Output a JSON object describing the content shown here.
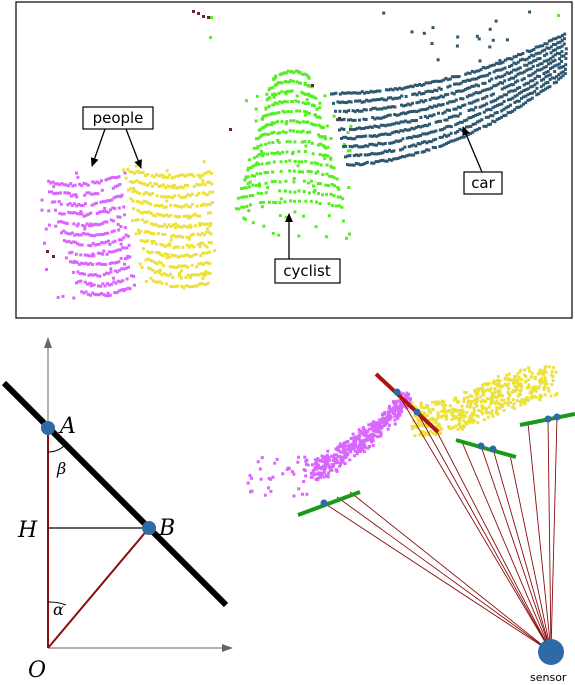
{
  "panel_top": {
    "labels": {
      "people": "people",
      "cyclist": "cyclist",
      "car": "car"
    }
  },
  "panel_geometry": {
    "points": {
      "A": "A",
      "B": "B",
      "H": "H",
      "O": "O"
    },
    "angles": {
      "alpha": "α",
      "beta": "β"
    }
  },
  "panel_scan": {
    "sensor_label": "sensor"
  },
  "colors": {
    "people_left": "#d966ff",
    "people_right": "#ece23a",
    "cyclist": "#55ee22",
    "car": "#2f5870",
    "ray": "#8b0d0d",
    "segment_green": "#1a9a1a",
    "segment_red": "#b01212",
    "node_blue": "#2e6aa6",
    "outlier": "#6b1f3b"
  }
}
